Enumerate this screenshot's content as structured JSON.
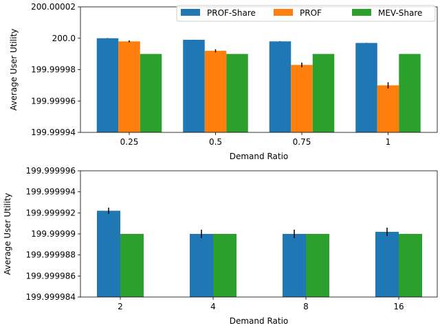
{
  "colors": {
    "PROF-Share": "#1f77b4",
    "PROF": "#ff7f0e",
    "MEV-Share": "#2ca02c",
    "axis": "#000000",
    "errorbar": "#000000"
  },
  "chart_data": [
    {
      "type": "bar",
      "title": "",
      "xlabel": "Demand Ratio",
      "ylabel": "Average User Utility",
      "categories": [
        "0.25",
        "0.5",
        "0.75",
        "1"
      ],
      "ylim": [
        199.99994,
        200.00002
      ],
      "yticks": [
        199.99994,
        199.99996,
        199.99998,
        200.0,
        200.00002
      ],
      "ytick_labels": [
        "199.99994",
        "199.99996",
        "199.99998",
        "200.0",
        "200.00002"
      ],
      "legend": {
        "position": "top-right",
        "ncol": 3,
        "entries": [
          "PROF-Share",
          "PROF",
          "MEV-Share"
        ]
      },
      "series": [
        {
          "name": "PROF-Share",
          "values": [
            200.0,
            199.999999,
            199.999998,
            199.999997
          ],
          "errors": [
            1e-07,
            5e-08,
            1e-07,
            1e-07
          ]
        },
        {
          "name": "PROF",
          "values": [
            199.999998,
            199.999992,
            199.999983,
            199.99997
          ],
          "errors": [
            6e-07,
            1e-06,
            1.5e-06,
            2e-06
          ]
        },
        {
          "name": "MEV-Share",
          "values": [
            199.99999,
            199.99999,
            199.99999,
            199.99999
          ],
          "errors": [
            0,
            0,
            0,
            0
          ]
        }
      ]
    },
    {
      "type": "bar",
      "title": "",
      "xlabel": "Demand Ratio",
      "ylabel": "Average User Utility",
      "categories": [
        "2",
        "4",
        "8",
        "16"
      ],
      "ylim": [
        199.999984,
        199.999996
      ],
      "yticks": [
        199.999984,
        199.999986,
        199.999988,
        199.99999,
        199.999992,
        199.999994,
        199.999996
      ],
      "ytick_labels": [
        "199.999984",
        "199.999986",
        "199.999988",
        "199.99999",
        "199.999992",
        "199.999994",
        "199.999996"
      ],
      "series": [
        {
          "name": "PROF-Share",
          "values": [
            199.9999922,
            199.99999,
            199.99999,
            199.9999902
          ],
          "errors": [
            3e-07,
            4e-07,
            4e-07,
            4e-07
          ]
        },
        {
          "name": "MEV-Share",
          "values": [
            199.99999,
            199.99999,
            199.99999,
            199.99999
          ],
          "errors": [
            0,
            0,
            0,
            0
          ]
        }
      ]
    }
  ]
}
